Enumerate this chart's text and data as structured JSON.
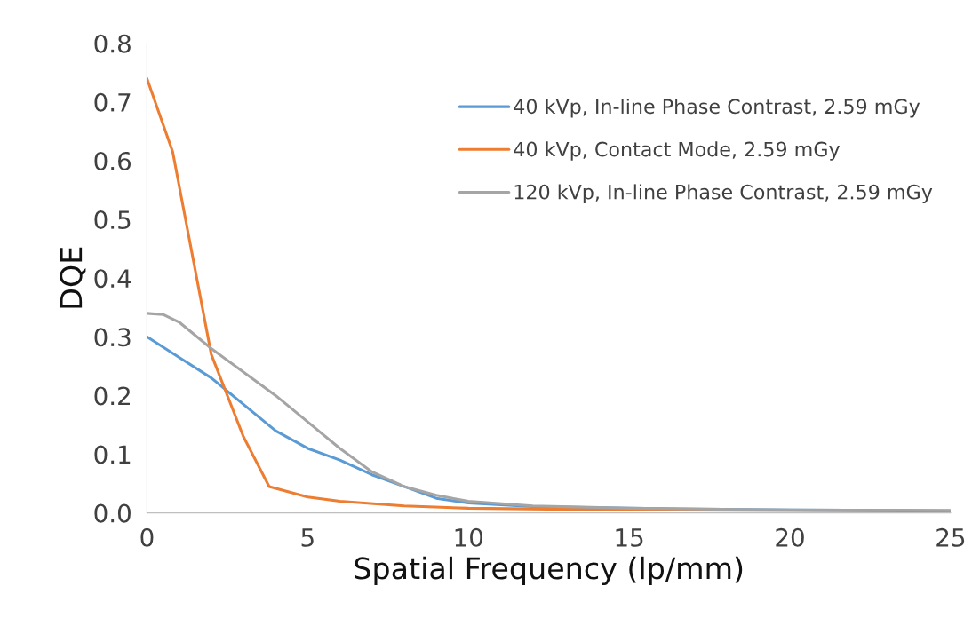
{
  "chart_data": {
    "type": "line",
    "xlabel": "Spatial Frequency (lp/mm)",
    "ylabel": "DQE",
    "xlim": [
      0,
      25
    ],
    "xticks": [
      0,
      5,
      10,
      15,
      20,
      25
    ],
    "ylim": [
      0,
      0.8
    ],
    "yticks": [
      {
        "value": 0,
        "label": "0.0"
      },
      0.1,
      0.2,
      0.3,
      0.4,
      0.5,
      0.6,
      0.7,
      0.8
    ],
    "grid": false,
    "legend": "top right",
    "line_style": "solid",
    "marker": "none",
    "series": [
      {
        "name": "40 kVp, In-line Phase Contrast, 2.59 mGy",
        "color": "#5b9bd5",
        "x": [
          0,
          1,
          2,
          3,
          4,
          5,
          6,
          7,
          8,
          9,
          10,
          12,
          15,
          20,
          25
        ],
        "values": [
          0.3,
          0.265,
          0.23,
          0.185,
          0.14,
          0.11,
          0.09,
          0.065,
          0.045,
          0.025,
          0.017,
          0.011,
          0.008,
          0.005,
          0.004
        ]
      },
      {
        "name": "40 kVp, Contact Mode, 2.59 mGy",
        "color": "#ed7d31",
        "x": [
          0,
          0.8,
          2,
          3,
          3.8,
          5,
          6,
          8,
          10,
          15,
          20,
          25
        ],
        "values": [
          0.74,
          0.615,
          0.27,
          0.13,
          0.045,
          0.027,
          0.02,
          0.012,
          0.008,
          0.005,
          0.004,
          0.003
        ]
      },
      {
        "name": "120 kVp, In-line Phase Contrast, 2.59 mGy",
        "color": "#a5a5a5",
        "x": [
          0,
          0.5,
          1,
          2,
          3,
          4,
          5,
          6,
          7,
          8,
          9,
          10,
          12,
          15,
          20,
          25
        ],
        "values": [
          0.34,
          0.338,
          0.325,
          0.28,
          0.24,
          0.2,
          0.155,
          0.11,
          0.07,
          0.045,
          0.03,
          0.02,
          0.012,
          0.008,
          0.005,
          0.004
        ]
      }
    ]
  }
}
